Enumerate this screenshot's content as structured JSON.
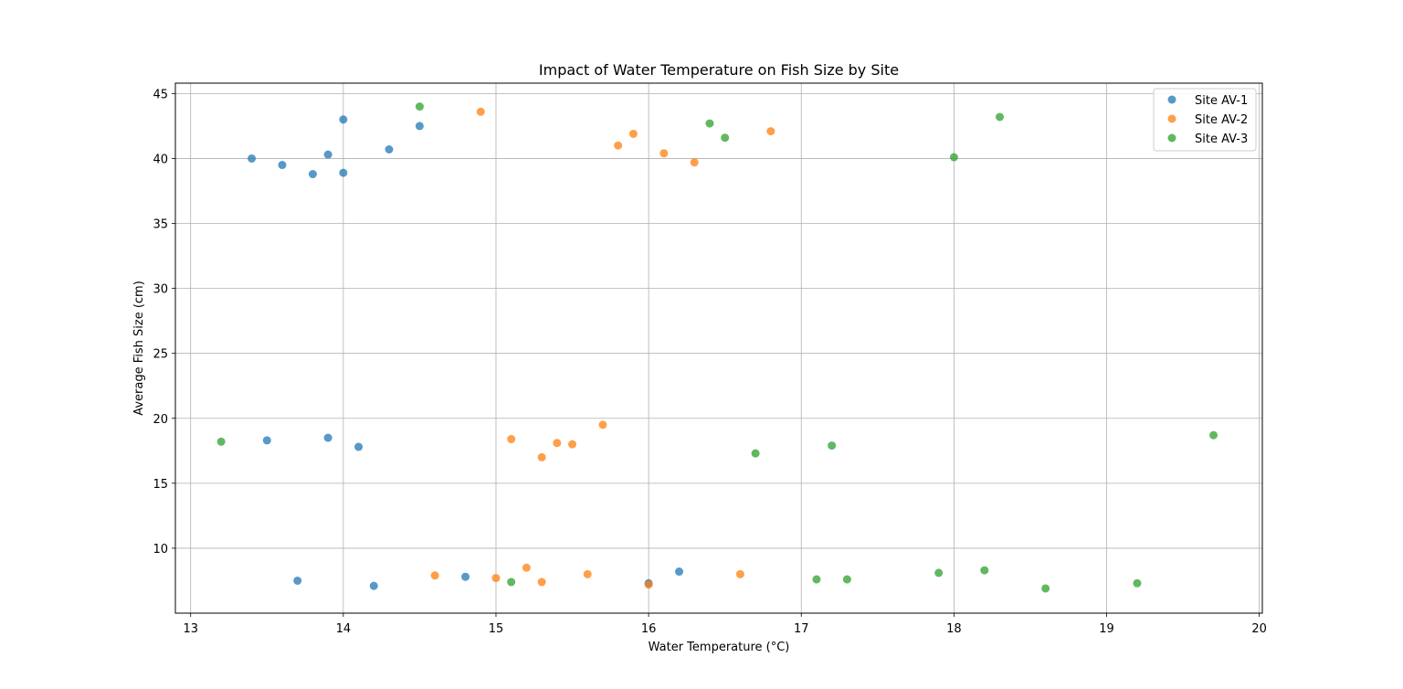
{
  "chart_data": {
    "type": "scatter",
    "title": "Impact of Water Temperature on Fish Size by Site",
    "xlabel": "Water Temperature (°C)",
    "ylabel": "Average Fish Size (cm)",
    "xlim": [
      12.9,
      20.02
    ],
    "ylim": [
      5.0,
      45.8
    ],
    "xticks": [
      13,
      14,
      15,
      16,
      17,
      18,
      19,
      20
    ],
    "yticks": [
      10,
      15,
      20,
      25,
      30,
      35,
      40,
      45
    ],
    "grid": true,
    "legend_position": "top-right",
    "series": [
      {
        "name": "Site AV-1",
        "color": "#1f77b4",
        "points": [
          [
            13.4,
            40.0
          ],
          [
            13.6,
            39.5
          ],
          [
            13.8,
            38.8
          ],
          [
            13.9,
            40.3
          ],
          [
            14.0,
            43.0
          ],
          [
            14.0,
            38.9
          ],
          [
            14.3,
            40.7
          ],
          [
            14.5,
            42.5
          ],
          [
            13.5,
            18.3
          ],
          [
            13.9,
            18.5
          ],
          [
            14.1,
            17.8
          ],
          [
            13.7,
            7.5
          ],
          [
            14.2,
            7.1
          ],
          [
            14.8,
            7.8
          ],
          [
            16.0,
            7.3
          ],
          [
            16.2,
            8.2
          ]
        ]
      },
      {
        "name": "Site AV-2",
        "color": "#ff7f0e",
        "points": [
          [
            14.9,
            43.6
          ],
          [
            15.8,
            41.0
          ],
          [
            15.9,
            41.9
          ],
          [
            16.1,
            40.4
          ],
          [
            16.3,
            39.7
          ],
          [
            16.8,
            42.1
          ],
          [
            15.1,
            18.4
          ],
          [
            15.3,
            17.0
          ],
          [
            15.4,
            18.1
          ],
          [
            15.5,
            18.0
          ],
          [
            15.7,
            19.5
          ],
          [
            14.6,
            7.9
          ],
          [
            15.0,
            7.7
          ],
          [
            15.2,
            8.5
          ],
          [
            15.3,
            7.4
          ],
          [
            15.6,
            8.0
          ],
          [
            16.0,
            7.2
          ],
          [
            16.6,
            8.0
          ]
        ]
      },
      {
        "name": "Site AV-3",
        "color": "#2ca02c",
        "points": [
          [
            14.5,
            44.0
          ],
          [
            16.4,
            42.7
          ],
          [
            16.5,
            41.6
          ],
          [
            18.0,
            40.1
          ],
          [
            18.3,
            43.2
          ],
          [
            13.2,
            18.2
          ],
          [
            16.7,
            17.3
          ],
          [
            17.2,
            17.9
          ],
          [
            19.7,
            18.7
          ],
          [
            15.1,
            7.4
          ],
          [
            17.1,
            7.6
          ],
          [
            17.3,
            7.6
          ],
          [
            17.9,
            8.1
          ],
          [
            18.2,
            8.3
          ],
          [
            18.6,
            6.9
          ],
          [
            19.2,
            7.3
          ]
        ]
      }
    ]
  }
}
